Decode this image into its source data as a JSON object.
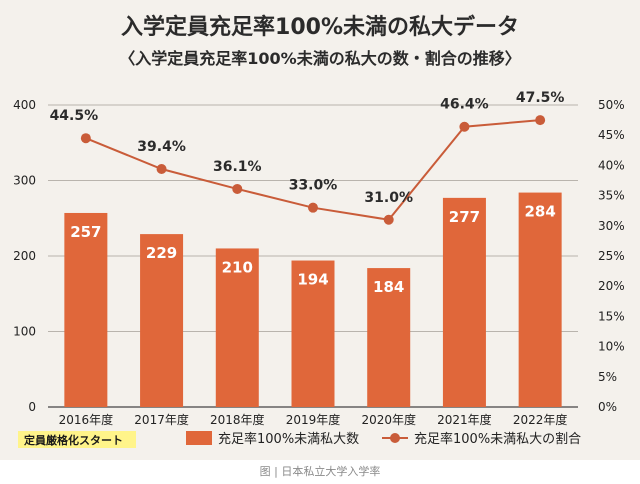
{
  "chart_data": {
    "type": "bar",
    "title": "入学定員充足率100%未満の私大データ",
    "subtitle": "〈入学定員充足率100%未満の私大の数・割合の推移〉",
    "categories": [
      "2016年度",
      "2017年度",
      "2018年度",
      "2019年度",
      "2020年度",
      "2021年度",
      "2022年度"
    ],
    "series": [
      {
        "name": "充足率100%未満私大数",
        "kind": "bar",
        "axis": "left",
        "values": [
          257,
          229,
          210,
          194,
          184,
          277,
          284
        ],
        "labels": [
          "257",
          "229",
          "210",
          "194",
          "184",
          "277",
          "284"
        ]
      },
      {
        "name": "充足率100%未満私大の割合",
        "kind": "line",
        "axis": "right",
        "values": [
          44.5,
          39.4,
          36.1,
          33.0,
          31.0,
          46.4,
          47.5
        ],
        "labels": [
          "44.5%",
          "39.4%",
          "36.1%",
          "33.0%",
          "31.0%",
          "46.4%",
          "47.5%"
        ]
      }
    ],
    "ylim_left": [
      0,
      400
    ],
    "yticks_left": [
      "0",
      "100",
      "200",
      "300",
      "400"
    ],
    "ylim_right": [
      0,
      50
    ],
    "yticks_right": [
      "0%",
      "5%",
      "10%",
      "15%",
      "20%",
      "25%",
      "30%",
      "35%",
      "40%",
      "45%",
      "50%"
    ],
    "grid": true,
    "legend_position": "bottom",
    "annotation": "定員厳格化スタート",
    "colors": {
      "bar": "#e0673a",
      "line": "#c95c39",
      "grid": "#b9b4ad"
    }
  },
  "caption": "图 | 日本私立大学入学率"
}
